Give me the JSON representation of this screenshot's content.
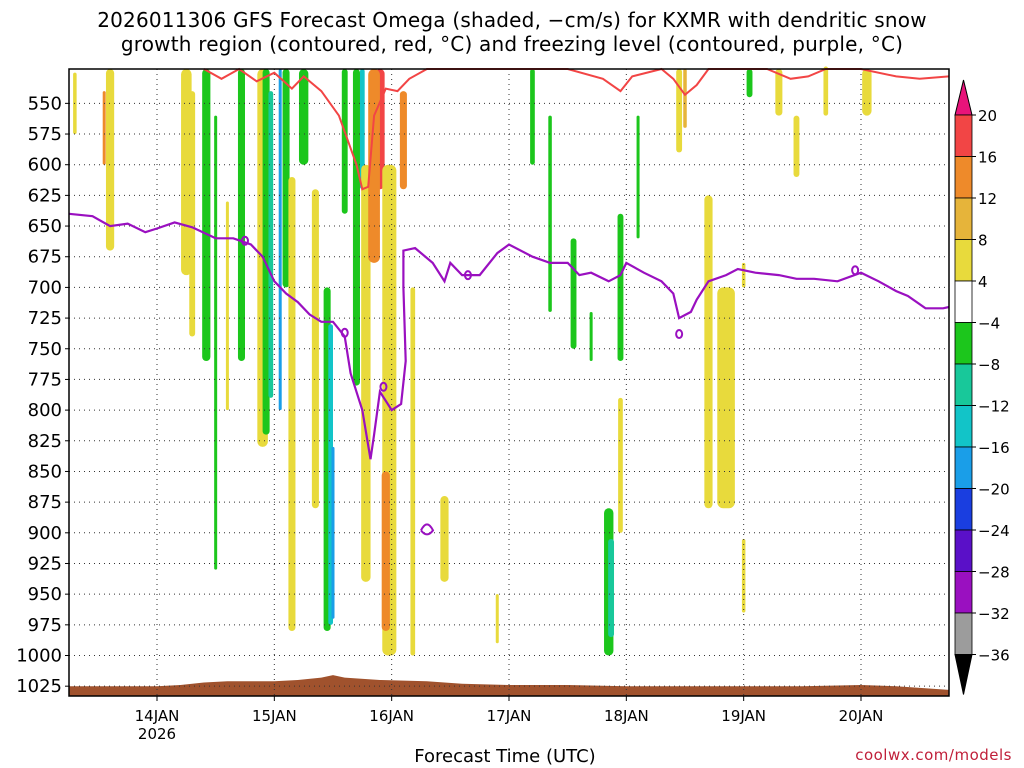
{
  "chart_data": {
    "type": "heatmap",
    "title_lines": [
      "2026011306 GFS Forecast Omega (shaded, −cm/s) for KXMR with dendritic snow",
      "growth region (contoured, red, °C) and freezing level (contoured, purple, °C)"
    ],
    "xlabel": "Forecast Time (UTC)",
    "ylabel": "",
    "x_ticks": [
      "14JAN",
      "15JAN",
      "16JAN",
      "17JAN",
      "18JAN",
      "19JAN",
      "20JAN"
    ],
    "x_tick_sublabel": "2026",
    "y_ticks": [
      550,
      575,
      600,
      625,
      650,
      675,
      700,
      725,
      750,
      775,
      800,
      825,
      850,
      875,
      900,
      925,
      950,
      975,
      1000,
      1025
    ],
    "y_range": [
      522,
      1033
    ],
    "x_range_days": [
      13.25,
      20.75
    ],
    "grid": true,
    "colorbar": {
      "levels": [
        20,
        16,
        12,
        8,
        4,
        -4,
        -8,
        -12,
        -16,
        -20,
        -24,
        -28,
        -32,
        -36
      ],
      "colors": [
        "#e8137a",
        "#f24545",
        "#ee8a2a",
        "#e6b43a",
        "#e8da3c",
        "#ffffff",
        "#1cc61c",
        "#18c89a",
        "#12c4c8",
        "#1a9ee8",
        "#1a3ee0",
        "#5a10c8",
        "#9a10c0",
        "#9c9c9c",
        "#000000"
      ]
    },
    "freezing_level": [
      [
        13.25,
        640
      ],
      [
        13.45,
        642
      ],
      [
        13.6,
        650
      ],
      [
        13.75,
        648
      ],
      [
        13.9,
        655
      ],
      [
        14.0,
        652
      ],
      [
        14.15,
        647
      ],
      [
        14.3,
        651
      ],
      [
        14.5,
        660
      ],
      [
        14.65,
        660
      ],
      [
        14.8,
        665
      ],
      [
        14.9,
        675
      ],
      [
        15.0,
        695
      ],
      [
        15.1,
        705
      ],
      [
        15.2,
        712
      ],
      [
        15.3,
        722
      ],
      [
        15.4,
        728
      ],
      [
        15.5,
        728
      ],
      [
        15.6,
        740
      ],
      [
        15.65,
        770
      ],
      [
        15.75,
        800
      ],
      [
        15.82,
        840
      ],
      [
        15.85,
        820
      ],
      [
        15.9,
        785
      ],
      [
        16.0,
        800
      ],
      [
        16.08,
        795
      ],
      [
        16.12,
        760
      ],
      [
        16.1,
        700
      ],
      [
        16.1,
        670
      ],
      [
        16.2,
        668
      ],
      [
        16.35,
        680
      ],
      [
        16.45,
        695
      ],
      [
        16.5,
        680
      ],
      [
        16.6,
        690
      ],
      [
        16.75,
        690
      ],
      [
        16.9,
        672
      ],
      [
        17.0,
        665
      ],
      [
        17.2,
        675
      ],
      [
        17.35,
        680
      ],
      [
        17.5,
        680
      ],
      [
        17.6,
        690
      ],
      [
        17.7,
        688
      ],
      [
        17.85,
        695
      ],
      [
        17.95,
        690
      ],
      [
        18.0,
        680
      ],
      [
        18.15,
        688
      ],
      [
        18.3,
        695
      ],
      [
        18.4,
        705
      ],
      [
        18.45,
        725
      ],
      [
        18.55,
        720
      ],
      [
        18.6,
        710
      ],
      [
        18.7,
        695
      ],
      [
        18.85,
        690
      ],
      [
        18.95,
        685
      ],
      [
        19.1,
        688
      ],
      [
        19.3,
        690
      ],
      [
        19.45,
        693
      ],
      [
        19.6,
        693
      ],
      [
        19.8,
        695
      ],
      [
        20.0,
        688
      ],
      [
        20.15,
        695
      ],
      [
        20.3,
        703
      ],
      [
        20.4,
        707
      ],
      [
        20.55,
        717
      ],
      [
        20.7,
        717
      ],
      [
        20.75,
        716
      ]
    ],
    "dgz_contour": [
      [
        14.4,
        522
      ],
      [
        14.55,
        530
      ],
      [
        14.7,
        522
      ],
      [
        14.85,
        532
      ],
      [
        15.0,
        525
      ],
      [
        15.15,
        538
      ],
      [
        15.25,
        528
      ],
      [
        15.4,
        540
      ],
      [
        15.55,
        560
      ],
      [
        15.7,
        600
      ],
      [
        15.75,
        620
      ],
      [
        15.8,
        618
      ],
      [
        15.85,
        560
      ],
      [
        15.95,
        538
      ],
      [
        16.05,
        540
      ],
      [
        16.15,
        530
      ],
      [
        16.3,
        522
      ],
      [
        17.0,
        522
      ],
      [
        17.5,
        522
      ],
      [
        17.8,
        530
      ],
      [
        17.95,
        540
      ],
      [
        18.05,
        528
      ],
      [
        18.3,
        522
      ],
      [
        18.4,
        530
      ],
      [
        18.5,
        543
      ],
      [
        18.6,
        535
      ],
      [
        18.7,
        522
      ],
      [
        19.2,
        522
      ],
      [
        19.4,
        530
      ],
      [
        19.55,
        528
      ],
      [
        19.7,
        522
      ],
      [
        20.0,
        522
      ],
      [
        20.3,
        528
      ],
      [
        20.5,
        530
      ],
      [
        20.75,
        528
      ]
    ]
  },
  "credit": "coolwx.com/models"
}
